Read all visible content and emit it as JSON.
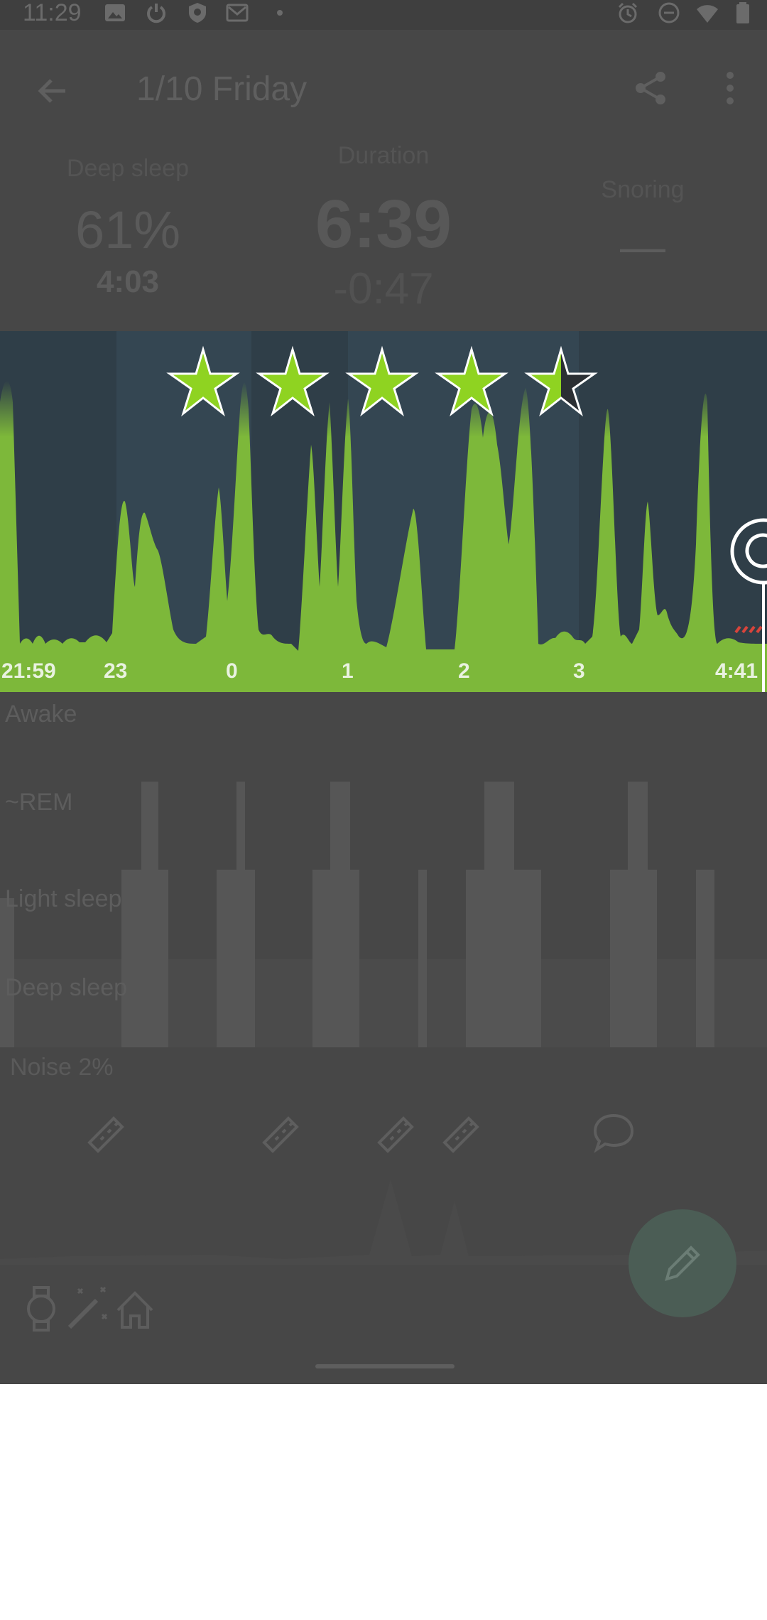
{
  "status_bar": {
    "time": "11:29",
    "left_icons": [
      "image-icon",
      "power-icon",
      "shield-icon",
      "mail-icon",
      "dot-icon"
    ],
    "right_icons": [
      "alarm-icon",
      "dnd-icon",
      "wifi-icon",
      "battery-icon"
    ]
  },
  "app_bar": {
    "title": "1/10 Friday",
    "back_icon": "arrow-back-icon",
    "share_icon": "share-icon",
    "more_icon": "more-vert-icon"
  },
  "stats": {
    "deep_sleep": {
      "label": "Deep sleep",
      "percent": "61%",
      "time": "4:03"
    },
    "duration": {
      "label": "Duration",
      "value": "6:39",
      "delta": "-0:47"
    },
    "snoring": {
      "label": "Snoring",
      "value": "—"
    }
  },
  "rating": {
    "stars": 4.5,
    "max": 5
  },
  "hypnogram": {
    "x_ticks": [
      "21:59",
      "23",
      "0",
      "1",
      "2",
      "3",
      "4:41"
    ],
    "colors": {
      "fill": "#7db83a",
      "background": "#2f3e48",
      "band": "#344652"
    }
  },
  "phases": {
    "labels": [
      "Awake",
      "~REM",
      "Light sleep",
      "Deep sleep"
    ]
  },
  "noise": {
    "label": "Noise 2%",
    "icons": [
      "saw-icon",
      "saw-icon",
      "saw-icon",
      "saw-icon",
      "speech-bubble-icon"
    ]
  },
  "bottom_icons": [
    "watch-icon",
    "magic-wand-icon",
    "home-icon"
  ],
  "fab": {
    "icon": "pencil-icon"
  }
}
